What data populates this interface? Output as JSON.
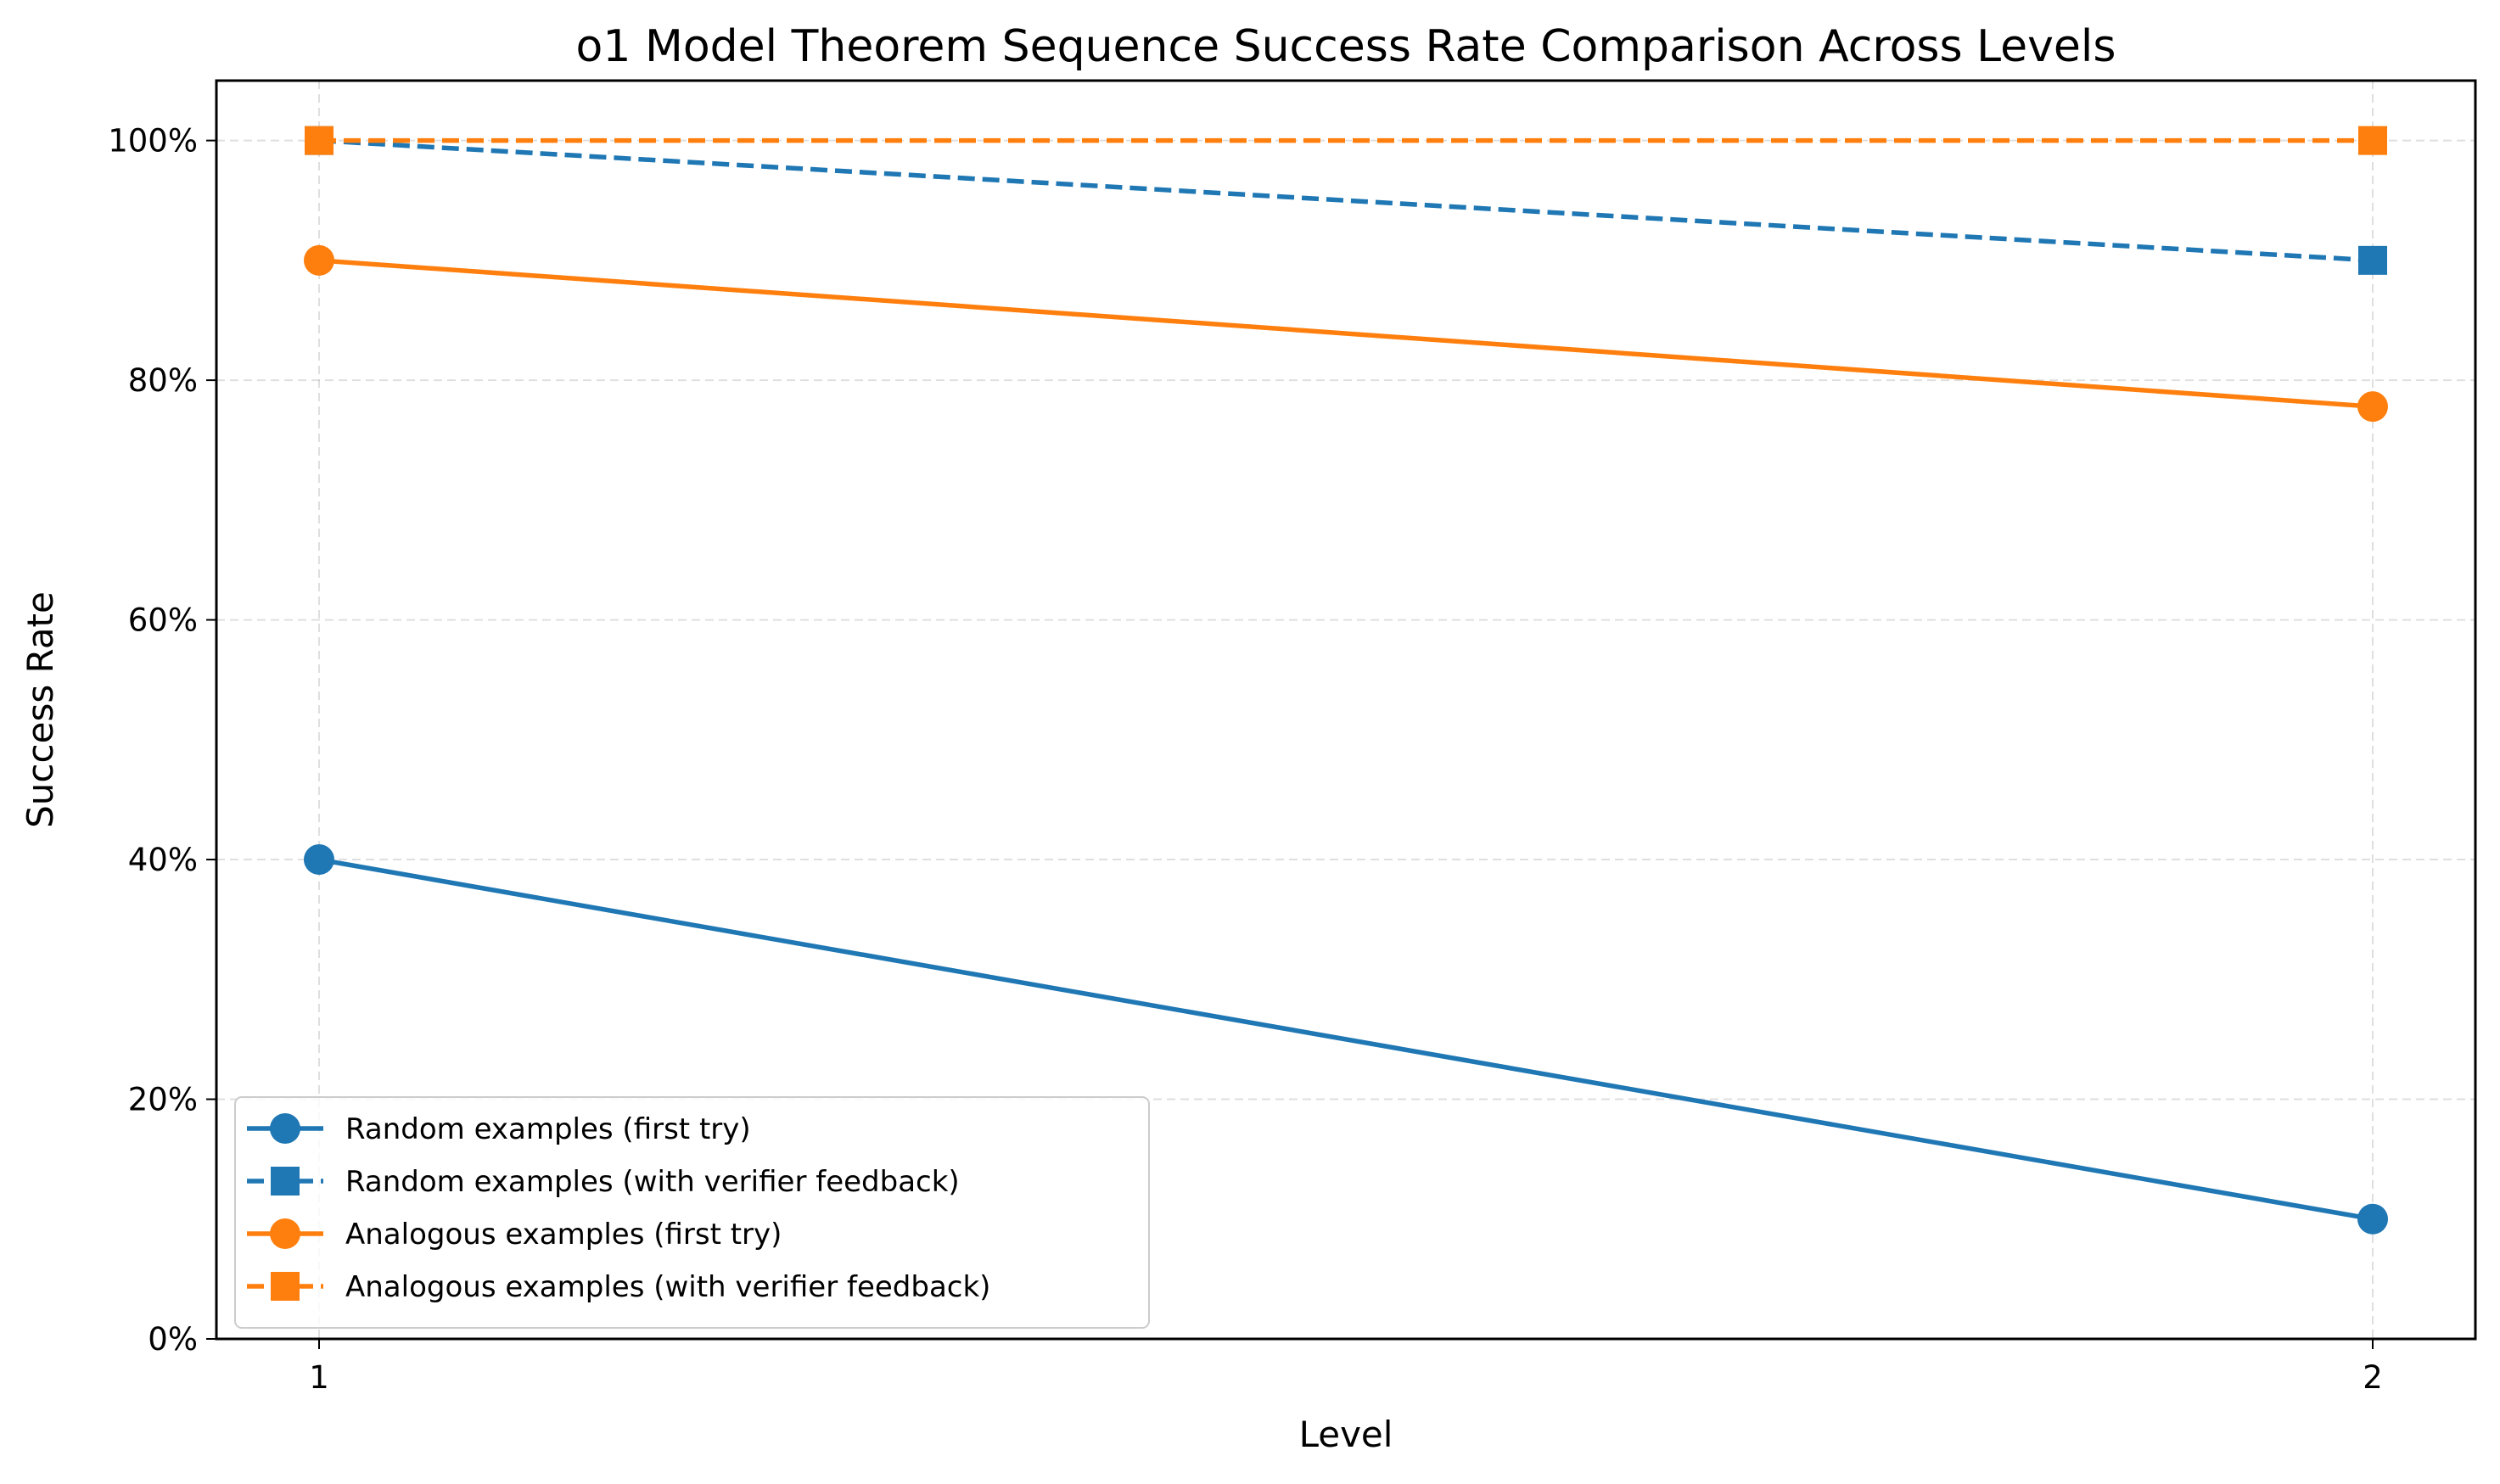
{
  "chart_data": {
    "type": "line",
    "title": "o1 Model Theorem Sequence Success Rate Comparison Across Levels",
    "xlabel": "Level",
    "ylabel": "Success Rate",
    "x": [
      1,
      2
    ],
    "x_tick_labels": [
      "1",
      "2"
    ],
    "ylim": [
      0,
      1.05
    ],
    "y_ticks": [
      0,
      0.2,
      0.4,
      0.6,
      0.8,
      1.0
    ],
    "y_tick_labels": [
      "0%",
      "20%",
      "40%",
      "60%",
      "80%",
      "100%"
    ],
    "grid": true,
    "legend_position": "lower-left",
    "series": [
      {
        "name": "Random examples (first try)",
        "values": [
          0.4,
          0.1
        ],
        "color": "#1f77b4",
        "linestyle": "solid",
        "marker": "circle"
      },
      {
        "name": "Random examples (with verifier feedback)",
        "values": [
          1.0,
          0.9
        ],
        "color": "#1f77b4",
        "linestyle": "dashed",
        "marker": "square"
      },
      {
        "name": "Analogous examples (first try)",
        "values": [
          0.9,
          0.778
        ],
        "color": "#ff7f0e",
        "linestyle": "solid",
        "marker": "circle"
      },
      {
        "name": "Analogous examples (with verifier feedback)",
        "values": [
          1.0,
          1.0
        ],
        "color": "#ff7f0e",
        "linestyle": "dashed",
        "marker": "square"
      }
    ]
  }
}
